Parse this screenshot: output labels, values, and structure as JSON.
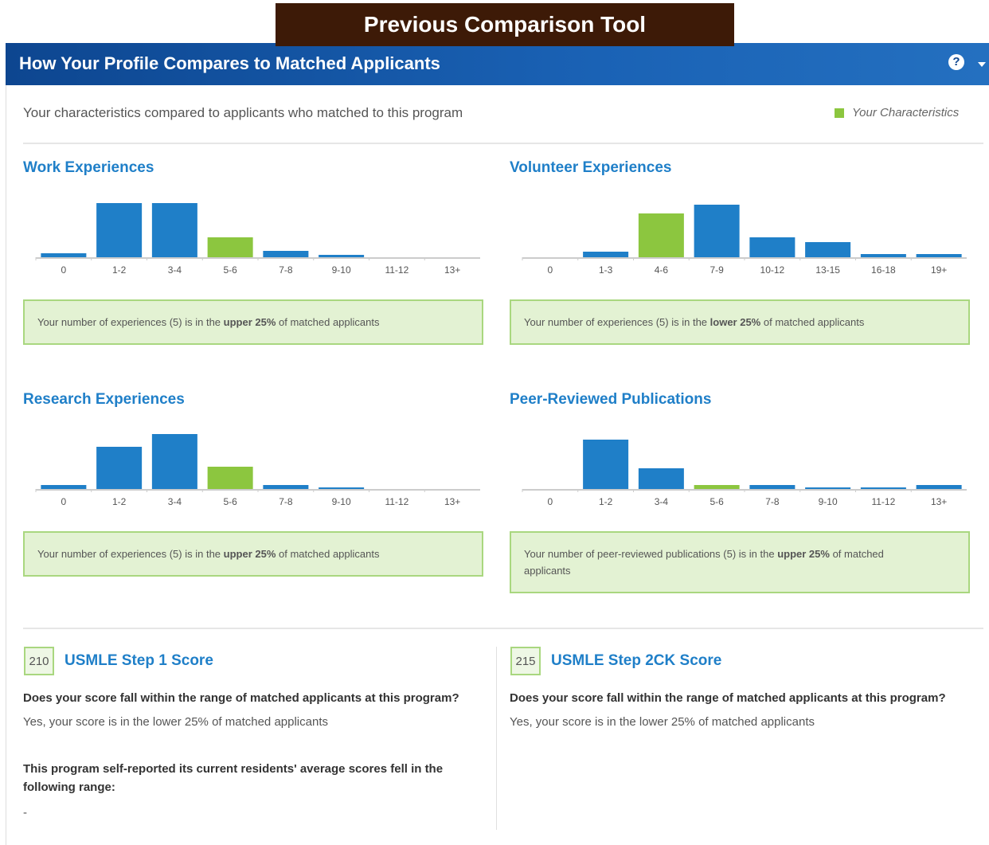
{
  "banner": "Previous Comparison Tool",
  "header": {
    "title": "How Your Profile Compares to Matched Applicants"
  },
  "intro": "Your characteristics compared to applicants who matched to this program",
  "legend": {
    "label": "Your Characteristics",
    "color": "#8cc63f"
  },
  "charts": [
    {
      "type": "bar",
      "title": "Work Experiences",
      "color": "#1f7fc8",
      "highlight": 3,
      "categories": [
        "0",
        "1-2",
        "3-4",
        "5-6",
        "7-8",
        "9-10",
        "11-12",
        "13+"
      ],
      "values": [
        5,
        68,
        68,
        25,
        8,
        3,
        0,
        0
      ],
      "note": [
        {
          "text": "Your number of experiences (5) is in the ",
          "bold": false
        },
        {
          "text": "upper 25%",
          "bold": true
        },
        {
          "text": " of matched applicants",
          "bold": false
        }
      ]
    },
    {
      "type": "bar",
      "title": "Volunteer Experiences",
      "color": "#1f7fc8",
      "highlight": 2,
      "categories": [
        "0",
        "1-3",
        "4-6",
        "7-9",
        "10-12",
        "13-15",
        "16-18",
        "19+"
      ],
      "values": [
        0,
        7,
        55,
        66,
        25,
        19,
        4,
        4
      ],
      "note": [
        {
          "text": "Your number of experiences (5) is in the ",
          "bold": false
        },
        {
          "text": "lower 25%",
          "bold": true
        },
        {
          "text": " of matched applicants",
          "bold": false
        }
      ]
    },
    {
      "type": "bar",
      "title": "Research Experiences",
      "color": "#1f7fc8",
      "highlight": 3,
      "categories": [
        "0",
        "1-2",
        "3-4",
        "5-6",
        "7-8",
        "9-10",
        "11-12",
        "13+"
      ],
      "values": [
        5,
        53,
        69,
        28,
        5,
        2,
        0,
        0
      ],
      "note": [
        {
          "text": "Your number of experiences (5) is in the ",
          "bold": false
        },
        {
          "text": "upper 25%",
          "bold": true
        },
        {
          "text": " of matched applicants",
          "bold": false
        }
      ]
    },
    {
      "type": "bar",
      "title": "Peer-Reviewed Publications",
      "color": "#1f7fc8",
      "highlight": 3,
      "categories": [
        "0",
        "1-2",
        "3-4",
        "5-6",
        "7-8",
        "9-10",
        "11-12",
        "13+"
      ],
      "values": [
        0,
        62,
        26,
        5,
        5,
        2,
        2,
        5
      ],
      "note": [
        {
          "text": "Your number of peer-reviewed publications (5) is in the ",
          "bold": false
        },
        {
          "text": "upper 25%",
          "bold": true
        },
        {
          "text": " of matched applicants",
          "bold": false
        }
      ]
    }
  ],
  "scores": [
    {
      "score": 210,
      "title": "USMLE Step 1 Score",
      "question": "Does your score fall within the range of matched applicants at this program?",
      "answer": "Yes, your score is in the lower 25% of matched applicants",
      "extra": "This program self-reported its current residents' average scores fell in the following range:",
      "extra_value": "-"
    },
    {
      "score": 215,
      "title": "USMLE Step 2CK Score",
      "question": "Does your score fall within the range of matched applicants at this program?",
      "answer": "Yes, your score is in the lower 25% of matched applicants"
    }
  ]
}
